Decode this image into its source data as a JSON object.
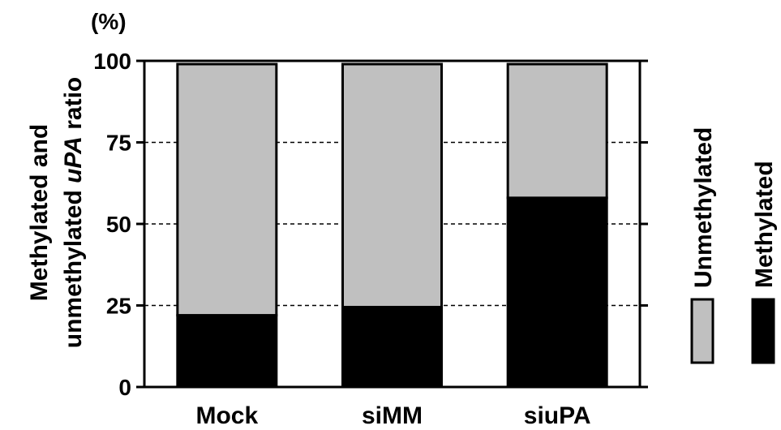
{
  "chart_data": {
    "type": "bar",
    "stacked": true,
    "categories": [
      "Mock",
      "siMM",
      "siuPA"
    ],
    "series": [
      {
        "name": "Methylated",
        "values": [
          22,
          24.5,
          58
        ],
        "color": "#000000"
      },
      {
        "name": "Unmethylated",
        "values": [
          77,
          74.5,
          41
        ],
        "color": "#c0c0c0"
      }
    ],
    "ylim": [
      0,
      100
    ],
    "yticks": [
      "0",
      "25",
      "50",
      "75",
      "100"
    ],
    "ytick_values": [
      0,
      25,
      50,
      75,
      100
    ],
    "unit": "(%)",
    "ylabel_line1": "Methylated and",
    "ylabel_line2_a": "unmethylated ",
    "ylabel_line2_b": "uPA",
    "ylabel_line2_c": " ratio",
    "grid": "dashed horizontal at 25, 50, 75",
    "legend_position": "right"
  }
}
